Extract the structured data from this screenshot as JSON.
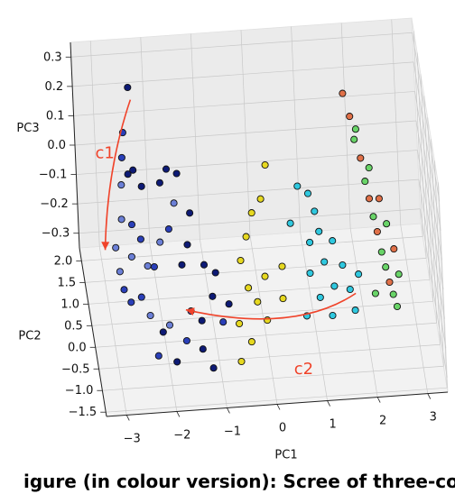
{
  "chart_data": {
    "type": "scatter",
    "projection": "3d",
    "xlabel": "PC1",
    "ylabel": "PC2",
    "zlabel": "PC3",
    "x_ticks": [
      -3,
      -2,
      -1,
      0,
      1,
      2,
      3
    ],
    "y_ticks": [
      -1.5,
      -1.0,
      -0.5,
      0.0,
      0.5,
      1.0,
      1.5,
      2.0
    ],
    "z_ticks": [
      0.3,
      0.2,
      0.1,
      0.0,
      -0.1,
      -0.2,
      -0.3
    ],
    "x_tick_labels": [
      "−3",
      "−2",
      "−1",
      "0",
      "1",
      "2",
      "3"
    ],
    "y_tick_labels": [
      "−1.5",
      "−1.0",
      "−0.5",
      "0.0",
      "0.5",
      "1.0",
      "1.5",
      "2.0"
    ],
    "z_tick_labels": [
      "0.3",
      "0.2",
      "0.1",
      "0.0",
      "−0.1",
      "−0.2",
      "−0.3"
    ],
    "xlim": [
      -3.4,
      3.4
    ],
    "ylim": [
      -1.6,
      2.3
    ],
    "zlim": [
      -0.35,
      0.35
    ],
    "grid": true,
    "annotations": [
      {
        "text": "c1",
        "color": "#f0432a",
        "curve": [
          [
            -2.3,
            1.9,
            0.2
          ],
          [
            -2.85,
            1.7,
            0.0
          ],
          [
            -3.0,
            1.2,
            -0.2
          ]
        ]
      },
      {
        "text": "c2",
        "color": "#f0432a",
        "curve": [
          [
            1.8,
            -0.2,
            -0.2
          ],
          [
            0.5,
            -0.7,
            -0.25
          ],
          [
            -1.6,
            -0.3,
            -0.2
          ]
        ]
      }
    ],
    "colors": [
      "#0d1a75",
      "#2a3fb8",
      "#6b7fd6",
      "#e6d820",
      "#2fc8df",
      "#69d468",
      "#e07048"
    ],
    "points": [
      {
        "x": -2.35,
        "y": 1.85,
        "z": 0.25,
        "c": 0
      },
      {
        "x": -2.5,
        "y": 1.7,
        "z": 0.12,
        "c": 1
      },
      {
        "x": -2.55,
        "y": 1.6,
        "z": 0.05,
        "c": 1
      },
      {
        "x": -2.45,
        "y": 1.55,
        "z": 0.0,
        "c": 0
      },
      {
        "x": -2.6,
        "y": 1.45,
        "z": -0.02,
        "c": 2
      },
      {
        "x": -2.35,
        "y": 1.5,
        "z": 0.02,
        "c": 0
      },
      {
        "x": -2.2,
        "y": 1.45,
        "z": -0.03,
        "c": 0
      },
      {
        "x": -2.65,
        "y": 1.2,
        "z": -0.1,
        "c": 2
      },
      {
        "x": -2.8,
        "y": 1.1,
        "z": -0.18,
        "c": 2
      },
      {
        "x": -2.75,
        "y": 0.95,
        "z": -0.24,
        "c": 2
      },
      {
        "x": -2.7,
        "y": 0.8,
        "z": -0.28,
        "c": 1
      },
      {
        "x": -2.5,
        "y": 1.0,
        "z": -0.2,
        "c": 2
      },
      {
        "x": -2.45,
        "y": 1.2,
        "z": -0.12,
        "c": 1
      },
      {
        "x": -2.3,
        "y": 1.05,
        "z": -0.15,
        "c": 1
      },
      {
        "x": -2.2,
        "y": 0.9,
        "z": -0.22,
        "c": 2
      },
      {
        "x": -2.6,
        "y": 0.5,
        "z": -0.28,
        "c": 1
      },
      {
        "x": -2.4,
        "y": 0.4,
        "z": -0.25,
        "c": 1
      },
      {
        "x": -2.25,
        "y": 0.3,
        "z": -0.3,
        "c": 2
      },
      {
        "x": -2.1,
        "y": 0.6,
        "z": -0.18,
        "c": 1
      },
      {
        "x": -1.95,
        "y": 0.75,
        "z": -0.12,
        "c": 2
      },
      {
        "x": -1.85,
        "y": 1.3,
        "z": 0.0,
        "c": 0
      },
      {
        "x": -1.7,
        "y": 1.4,
        "z": 0.03,
        "c": 0
      },
      {
        "x": -1.6,
        "y": 1.15,
        "z": -0.05,
        "c": 2
      },
      {
        "x": -1.5,
        "y": 1.35,
        "z": 0.02,
        "c": 0
      },
      {
        "x": -1.75,
        "y": 0.9,
        "z": -0.1,
        "c": 1
      },
      {
        "x": -1.55,
        "y": 0.6,
        "z": -0.18,
        "c": 0
      },
      {
        "x": -1.4,
        "y": 0.85,
        "z": -0.15,
        "c": 0
      },
      {
        "x": -1.3,
        "y": 1.1,
        "z": -0.08,
        "c": 0
      },
      {
        "x": -1.1,
        "y": 0.7,
        "z": -0.2,
        "c": 0
      },
      {
        "x": -1.45,
        "y": 0.2,
        "z": -0.28,
        "c": 1
      },
      {
        "x": -1.25,
        "y": 0.1,
        "z": -0.3,
        "c": 0
      },
      {
        "x": -1.0,
        "y": 0.3,
        "z": -0.25,
        "c": 0
      },
      {
        "x": -0.9,
        "y": 0.5,
        "z": -0.2,
        "c": 0
      },
      {
        "x": -1.9,
        "y": 0.05,
        "z": -0.3,
        "c": 2
      },
      {
        "x": -2.05,
        "y": -0.1,
        "z": -0.3,
        "c": 0
      },
      {
        "x": -1.6,
        "y": -0.2,
        "z": -0.32,
        "c": 1
      },
      {
        "x": -1.3,
        "y": -0.35,
        "z": -0.33,
        "c": 0
      },
      {
        "x": -0.85,
        "y": -0.1,
        "z": -0.28,
        "c": 1
      },
      {
        "x": -0.7,
        "y": 0.1,
        "z": -0.25,
        "c": 0
      },
      {
        "x": -2.2,
        "y": -0.5,
        "z": -0.32,
        "c": 1
      },
      {
        "x": -1.85,
        "y": -0.6,
        "z": -0.33,
        "c": 0
      },
      {
        "x": -1.15,
        "y": -0.8,
        "z": -0.33,
        "c": 0
      },
      {
        "x": -0.25,
        "y": 0.6,
        "z": -0.1,
        "c": 3
      },
      {
        "x": -0.1,
        "y": 0.8,
        "z": -0.05,
        "c": 3
      },
      {
        "x": -0.4,
        "y": 0.4,
        "z": -0.15,
        "c": 3
      },
      {
        "x": 0.1,
        "y": 0.9,
        "z": -0.02,
        "c": 3
      },
      {
        "x": 0.25,
        "y": 1.2,
        "z": 0.05,
        "c": 3
      },
      {
        "x": -0.3,
        "y": 0.1,
        "z": -0.2,
        "c": 3
      },
      {
        "x": -0.15,
        "y": -0.1,
        "z": -0.22,
        "c": 3
      },
      {
        "x": 0.05,
        "y": 0.2,
        "z": -0.18,
        "c": 3
      },
      {
        "x": -0.55,
        "y": -0.3,
        "z": -0.26,
        "c": 3
      },
      {
        "x": -0.35,
        "y": -0.6,
        "z": -0.28,
        "c": 3
      },
      {
        "x": -0.6,
        "y": -0.9,
        "z": -0.3,
        "c": 3
      },
      {
        "x": 0.0,
        "y": -0.4,
        "z": -0.24,
        "c": 3
      },
      {
        "x": 0.4,
        "y": 0.2,
        "z": -0.15,
        "c": 3
      },
      {
        "x": 0.35,
        "y": -0.2,
        "z": -0.2,
        "c": 3
      },
      {
        "x": 0.85,
        "y": 1.0,
        "z": 0.0,
        "c": 4
      },
      {
        "x": 1.05,
        "y": 0.95,
        "z": -0.02,
        "c": 4
      },
      {
        "x": 1.15,
        "y": 0.8,
        "z": -0.06,
        "c": 4
      },
      {
        "x": 1.2,
        "y": 0.6,
        "z": -0.1,
        "c": 4
      },
      {
        "x": 1.0,
        "y": 0.5,
        "z": -0.12,
        "c": 4
      },
      {
        "x": 0.95,
        "y": 0.2,
        "z": -0.18,
        "c": 4
      },
      {
        "x": 1.25,
        "y": 0.3,
        "z": -0.16,
        "c": 4
      },
      {
        "x": 1.45,
        "y": 0.5,
        "z": -0.12,
        "c": 4
      },
      {
        "x": 1.6,
        "y": 0.2,
        "z": -0.16,
        "c": 4
      },
      {
        "x": 1.4,
        "y": 0.0,
        "z": -0.2,
        "c": 4
      },
      {
        "x": 1.1,
        "y": -0.1,
        "z": -0.22,
        "c": 4
      },
      {
        "x": 1.7,
        "y": -0.1,
        "z": -0.2,
        "c": 4
      },
      {
        "x": 1.9,
        "y": 0.1,
        "z": -0.18,
        "c": 4
      },
      {
        "x": 0.8,
        "y": -0.3,
        "z": -0.25,
        "c": 4
      },
      {
        "x": 1.3,
        "y": -0.4,
        "z": -0.24,
        "c": 4
      },
      {
        "x": 1.75,
        "y": -0.45,
        "z": -0.22,
        "c": 4
      },
      {
        "x": 0.65,
        "y": 0.7,
        "z": -0.08,
        "c": 4
      },
      {
        "x": 1.9,
        "y": 1.7,
        "z": 0.2,
        "c": 6
      },
      {
        "x": 2.0,
        "y": 1.5,
        "z": 0.15,
        "c": 6
      },
      {
        "x": 2.05,
        "y": 1.3,
        "z": 0.1,
        "c": 5
      },
      {
        "x": 2.15,
        "y": 1.2,
        "z": 0.05,
        "c": 6
      },
      {
        "x": 2.2,
        "y": 1.0,
        "z": 0.0,
        "c": 5
      },
      {
        "x": 2.25,
        "y": 0.8,
        "z": -0.03,
        "c": 6
      },
      {
        "x": 2.3,
        "y": 0.65,
        "z": -0.07,
        "c": 5
      },
      {
        "x": 2.35,
        "y": 0.5,
        "z": -0.1,
        "c": 6
      },
      {
        "x": 2.4,
        "y": 0.3,
        "z": -0.14,
        "c": 5
      },
      {
        "x": 2.45,
        "y": 0.15,
        "z": -0.17,
        "c": 5
      },
      {
        "x": 2.5,
        "y": 0.0,
        "z": -0.2,
        "c": 6
      },
      {
        "x": 2.55,
        "y": -0.15,
        "z": -0.22,
        "c": 5
      },
      {
        "x": 2.6,
        "y": -0.3,
        "z": -0.24,
        "c": 5
      },
      {
        "x": 2.1,
        "y": 1.4,
        "z": 0.12,
        "c": 5
      },
      {
        "x": 2.3,
        "y": 1.1,
        "z": 0.03,
        "c": 5
      },
      {
        "x": 2.45,
        "y": 0.85,
        "z": -0.04,
        "c": 6
      },
      {
        "x": 2.55,
        "y": 0.6,
        "z": -0.09,
        "c": 5
      },
      {
        "x": 2.65,
        "y": 0.35,
        "z": -0.14,
        "c": 6
      },
      {
        "x": 2.7,
        "y": 0.1,
        "z": -0.19,
        "c": 5
      },
      {
        "x": 2.2,
        "y": -0.1,
        "z": -0.22,
        "c": 5
      }
    ]
  },
  "caption": {
    "text": "igure (in colour version): Scree of three-component PCA projection of the joint probability distribution of the inputs"
  }
}
